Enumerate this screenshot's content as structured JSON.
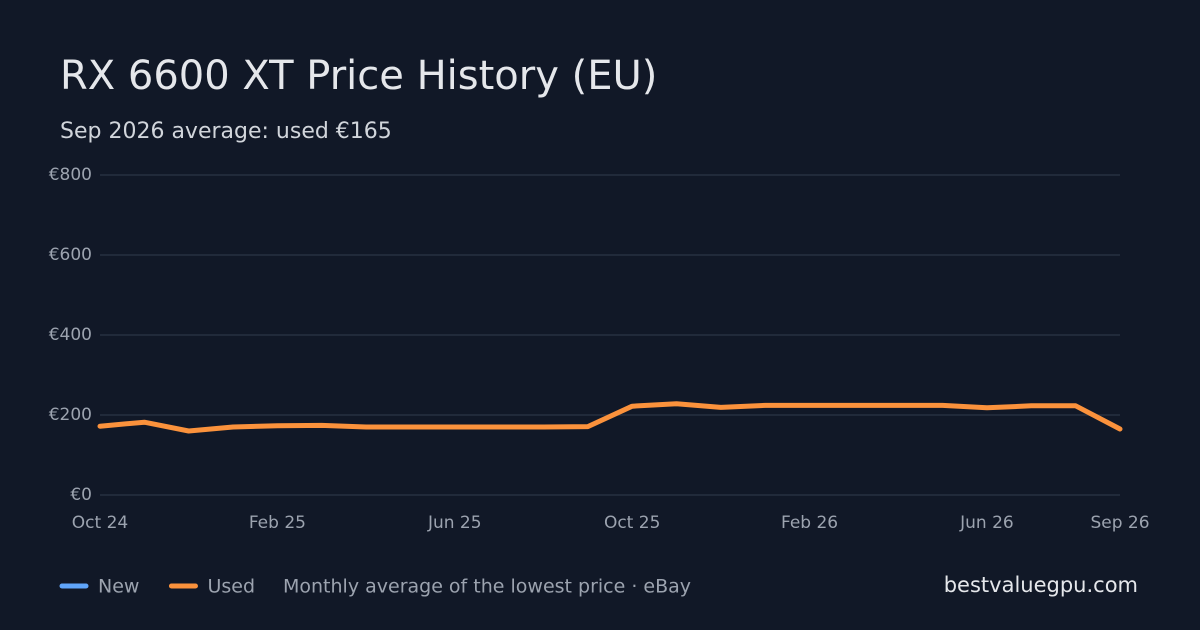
{
  "chart_data": {
    "type": "line",
    "title": "RX 6600 XT Price History (EU)",
    "subtitle": "Sep 2026 average: used €165",
    "categories": [
      "Oct 24",
      null,
      null,
      null,
      "Feb 25",
      null,
      null,
      null,
      "Jun 25",
      null,
      null,
      null,
      "Oct 25",
      null,
      null,
      null,
      "Feb 26",
      null,
      null,
      null,
      "Jun 26",
      null,
      null,
      "Sep 26"
    ],
    "series": [
      {
        "name": "New",
        "color": "#60a5fa",
        "values": [
          null,
          null,
          null,
          null,
          null,
          null,
          null,
          null,
          null,
          null,
          null,
          null,
          null,
          null,
          null,
          null,
          null,
          null,
          null,
          null,
          null,
          null,
          null,
          null
        ]
      },
      {
        "name": "Used",
        "color": "#fb923c",
        "values": [
          172,
          182,
          160,
          170,
          173,
          174,
          170,
          170,
          170,
          170,
          170,
          171,
          222,
          228,
          219,
          224,
          224,
          224,
          224,
          224,
          218,
          223,
          223,
          165
        ]
      }
    ],
    "ylim": [
      0,
      800
    ],
    "yticks": [
      {
        "value": 0,
        "label": "€0"
      },
      {
        "value": 200,
        "label": "€200"
      },
      {
        "value": 400,
        "label": "€400"
      },
      {
        "value": 600,
        "label": "€600"
      },
      {
        "value": 800,
        "label": "€800"
      }
    ],
    "grid": true,
    "note": "Monthly average of the lowest price · eBay",
    "site": "bestvaluegpu.com"
  }
}
